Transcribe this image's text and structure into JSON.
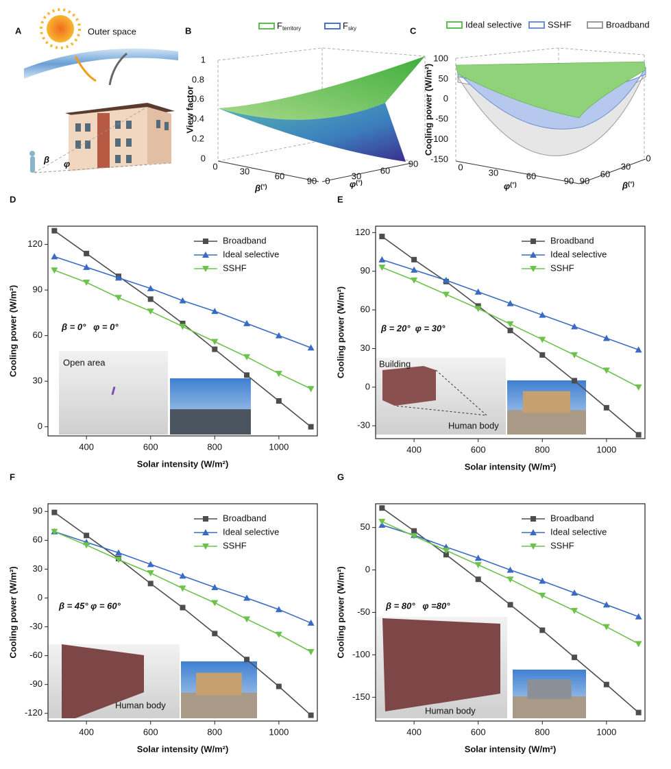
{
  "panel_a": {
    "label": "A",
    "text": "Outer space",
    "angles": [
      "β",
      "φ"
    ]
  },
  "panel_b": {
    "label": "B",
    "legend": [
      {
        "main": "F",
        "sub": "territory",
        "color": "#5cbf4a"
      },
      {
        "main": "F",
        "sub": "sky",
        "color": "#4a74c9"
      }
    ],
    "zlabel": "View factor",
    "zticks": [
      0,
      0.2,
      0.4,
      0.6,
      0.8,
      1
    ],
    "xlabel": {
      "main": "β",
      "unit": "(°)"
    },
    "xticks": [
      0,
      30,
      60,
      90
    ],
    "ylabel": {
      "main": "φ",
      "unit": "(°)"
    },
    "yticks": [
      0,
      30,
      60,
      90
    ]
  },
  "panel_c": {
    "label": "C",
    "legend": [
      {
        "name": "Ideal selective",
        "color": "#5cbf4a"
      },
      {
        "name": "SSHF",
        "color": "#6b8fd6"
      },
      {
        "name": "Broadband",
        "color": "#9a9a9a"
      }
    ],
    "zlabel": "Cooling power (W/m²)",
    "zticks": [
      100,
      50,
      0,
      -50,
      -100,
      -150
    ],
    "xlabel": {
      "main": "φ",
      "unit": "(°)"
    },
    "xticks": [
      0,
      30,
      60,
      90
    ],
    "ylabel": {
      "main": "β",
      "unit": "(°)"
    },
    "yticks": [
      90,
      60,
      30,
      0
    ]
  },
  "chart_data": [
    {
      "type": "line",
      "panel_label": "D",
      "x_label": "Solar intensity (W/m²)",
      "y_label": "Cooling power (W/m²)",
      "x": [
        300,
        400,
        500,
        600,
        700,
        800,
        900,
        1000,
        1100
      ],
      "xlim": [
        280,
        1120
      ],
      "xticks": [
        400,
        600,
        800,
        1000
      ],
      "ylim": [
        -6,
        132
      ],
      "yticks": [
        0,
        30,
        60,
        90,
        120
      ],
      "series": [
        {
          "name": "Broadband",
          "color": "#4d4d4d",
          "marker": "square",
          "values": [
            129,
            114,
            99,
            84,
            68,
            51,
            34,
            17,
            0
          ]
        },
        {
          "name": "Ideal selective",
          "color": "#3a6bc4",
          "marker": "triangle-up",
          "values": [
            112,
            105,
            98,
            91,
            83,
            76,
            68,
            60,
            52
          ]
        },
        {
          "name": "SSHF",
          "color": "#6cc24a",
          "marker": "triangle-down",
          "values": [
            103,
            95,
            85,
            76,
            66,
            56,
            46,
            35,
            25
          ]
        }
      ],
      "annotations": [
        "β = 0°   φ = 0°",
        "Open area"
      ]
    },
    {
      "type": "line",
      "panel_label": "E",
      "x_label": "Solar intensity (W/m²)",
      "y_label": "Cooling power (W/m²)",
      "x": [
        300,
        400,
        500,
        600,
        700,
        800,
        900,
        1000,
        1100
      ],
      "xlim": [
        280,
        1120
      ],
      "xticks": [
        400,
        600,
        800,
        1000
      ],
      "ylim": [
        -40,
        125
      ],
      "yticks": [
        -30,
        0,
        30,
        60,
        90,
        120
      ],
      "series": [
        {
          "name": "Broadband",
          "color": "#4d4d4d",
          "marker": "square",
          "values": [
            117,
            99,
            82,
            63,
            44,
            25,
            5,
            -16,
            -37
          ]
        },
        {
          "name": "Ideal selective",
          "color": "#3a6bc4",
          "marker": "triangle-up",
          "values": [
            99,
            91,
            83,
            74,
            65,
            56,
            47,
            38,
            29
          ]
        },
        {
          "name": "SSHF",
          "color": "#6cc24a",
          "marker": "triangle-down",
          "values": [
            93,
            83,
            72,
            61,
            49,
            37,
            25,
            13,
            0
          ]
        }
      ],
      "annotations": [
        "β = 20°  φ = 30°",
        "Building",
        "Human body"
      ]
    },
    {
      "type": "line",
      "panel_label": "F",
      "x_label": "Solar intensity (W/m²)",
      "y_label": "Cooling power (W/m²)",
      "x": [
        300,
        400,
        500,
        600,
        700,
        800,
        900,
        1000,
        1100
      ],
      "xlim": [
        280,
        1120
      ],
      "xticks": [
        400,
        600,
        800,
        1000
      ],
      "ylim": [
        -128,
        98
      ],
      "yticks": [
        -120,
        -90,
        -60,
        -30,
        0,
        30,
        60,
        90
      ],
      "series": [
        {
          "name": "Broadband",
          "color": "#4d4d4d",
          "marker": "square",
          "values": [
            89,
            65,
            41,
            15,
            -10,
            -37,
            -64,
            -92,
            -122
          ]
        },
        {
          "name": "Ideal selective",
          "color": "#3a6bc4",
          "marker": "triangle-up",
          "values": [
            69,
            58,
            47,
            35,
            23,
            11,
            0,
            -12,
            -26
          ]
        },
        {
          "name": "SSHF",
          "color": "#6cc24a",
          "marker": "triangle-down",
          "values": [
            69,
            55,
            40,
            26,
            10,
            -5,
            -22,
            -38,
            -56
          ]
        }
      ],
      "annotations": [
        "β = 45° φ = 60°",
        "Human body"
      ]
    },
    {
      "type": "line",
      "panel_label": "G",
      "x_label": "Solar intensity (W/m²)",
      "y_label": "Cooling power (W/m²)",
      "x": [
        300,
        400,
        500,
        600,
        700,
        800,
        900,
        1000,
        1100
      ],
      "xlim": [
        280,
        1120
      ],
      "xticks": [
        400,
        600,
        800,
        1000
      ],
      "ylim": [
        -178,
        78
      ],
      "yticks": [
        -150,
        -100,
        -50,
        0,
        50
      ],
      "series": [
        {
          "name": "Broadband",
          "color": "#4d4d4d",
          "marker": "square",
          "values": [
            73,
            46,
            18,
            -11,
            -41,
            -71,
            -103,
            -135,
            -168
          ]
        },
        {
          "name": "Ideal selective",
          "color": "#3a6bc4",
          "marker": "triangle-up",
          "values": [
            53,
            41,
            27,
            14,
            0,
            -13,
            -27,
            -41,
            -55
          ]
        },
        {
          "name": "SSHF",
          "color": "#6cc24a",
          "marker": "triangle-down",
          "values": [
            57,
            40,
            23,
            6,
            -11,
            -30,
            -48,
            -67,
            -87
          ]
        }
      ],
      "annotations": [
        "β = 80°   φ =80°",
        "Human body"
      ]
    }
  ]
}
